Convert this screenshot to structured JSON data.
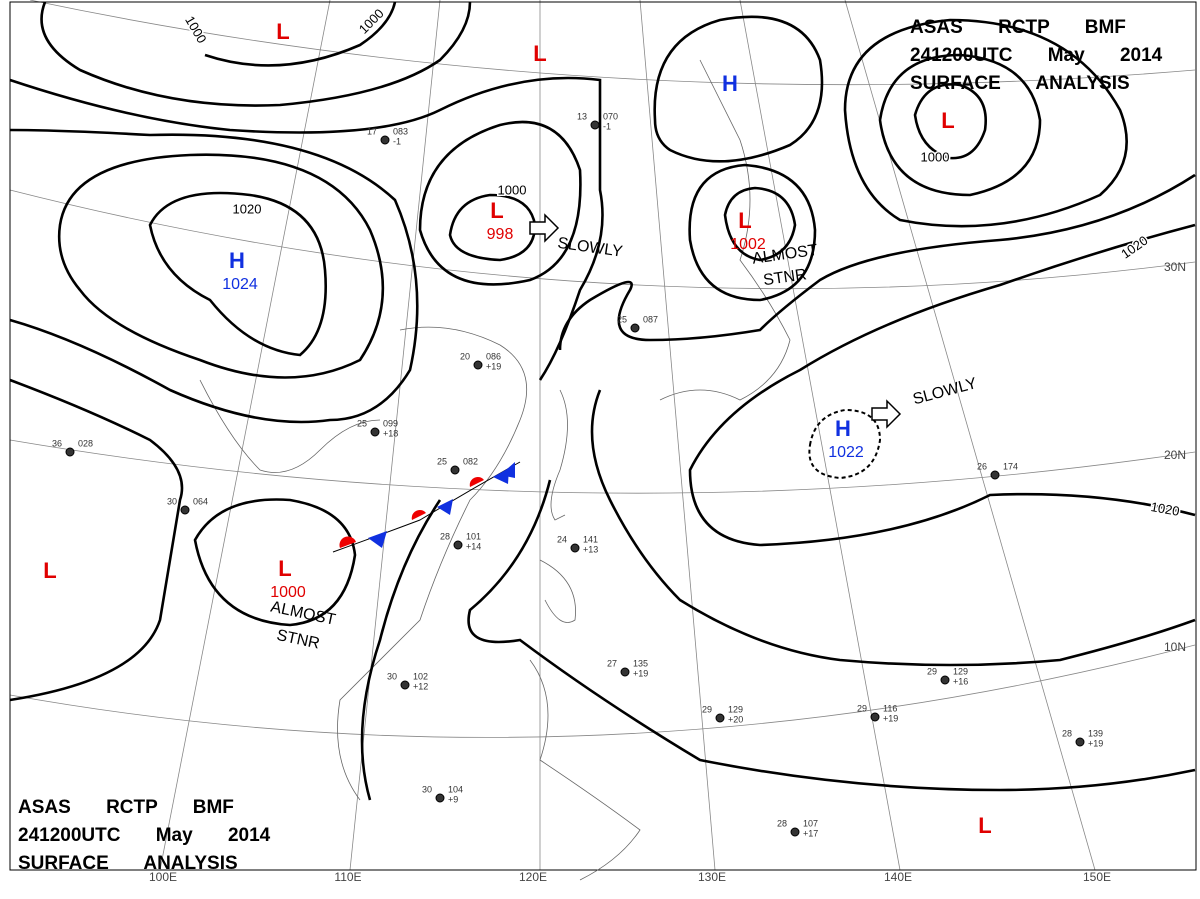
{
  "header_top": {
    "line1": "ASAS RCTP BMF",
    "line2": "241200UTC May 2014",
    "line3": "SURFACE ANALYSIS"
  },
  "header_bottom": {
    "line1": "ASAS RCTP BMF",
    "line2": "241200UTC May 2014",
    "line3": "SURFACE ANALYSIS"
  },
  "pressure_centers": [
    {
      "symbol": "L"
    },
    {
      "symbol": "L"
    },
    {
      "symbol": "H"
    },
    {
      "symbol": "L"
    },
    {
      "symbol": "H",
      "value": "1024"
    },
    {
      "symbol": "L",
      "value": "998"
    },
    {
      "symbol": "L",
      "value": "1002"
    },
    {
      "symbol": "H",
      "value": "1022"
    },
    {
      "symbol": "L",
      "value": "1000"
    },
    {
      "symbol": "L"
    },
    {
      "symbol": "L"
    }
  ],
  "isobar_labels": [
    "1000",
    "1000",
    "1020",
    "1000",
    "1000",
    "1020",
    "1020"
  ],
  "annotations": [
    "SLOWLY",
    "SLOWLY",
    "ALMOST",
    "STNR",
    "ALMOST",
    "STNR"
  ],
  "latitude_labels": [
    "30N",
    "20N",
    "10N"
  ],
  "longitude_labels": [
    "100E",
    "110E",
    "120E",
    "130E",
    "140E",
    "150E"
  ],
  "stations": [
    {
      "temperature": "25",
      "pressure": "099",
      "change": "+18"
    },
    {
      "temperature": "25",
      "pressure": "082"
    },
    {
      "temperature": "28",
      "pressure": "101",
      "change": "+14"
    },
    {
      "temperature": "24",
      "pressure": "141",
      "change": "+13"
    },
    {
      "temperature": "30",
      "pressure": "102",
      "change": "+12"
    },
    {
      "temperature": "27",
      "pressure": "135",
      "change": "+19"
    },
    {
      "temperature": "29",
      "pressure": "129",
      "change": "+20"
    },
    {
      "temperature": "29",
      "pressure": "129",
      "change": "+16"
    },
    {
      "temperature": "29",
      "pressure": "116",
      "change": "+19"
    },
    {
      "temperature": "28",
      "pressure": "139",
      "change": "+19"
    },
    {
      "temperature": "28",
      "pressure": "107",
      "change": "+17"
    },
    {
      "temperature": "30",
      "pressure": "104",
      "change": "+9"
    },
    {
      "temperature": "30",
      "pressure": "064"
    },
    {
      "temperature": "36",
      "pressure": "028"
    },
    {
      "temperature": "26",
      "pressure": "174"
    },
    {
      "temperature": "25",
      "pressure": "087"
    },
    {
      "temperature": "20",
      "pressure": "086",
      "change": "+19"
    },
    {
      "temperature": "17",
      "pressure": "083",
      "change": "-1"
    },
    {
      "temperature": "13",
      "pressure": "070",
      "change": "-1"
    }
  ]
}
